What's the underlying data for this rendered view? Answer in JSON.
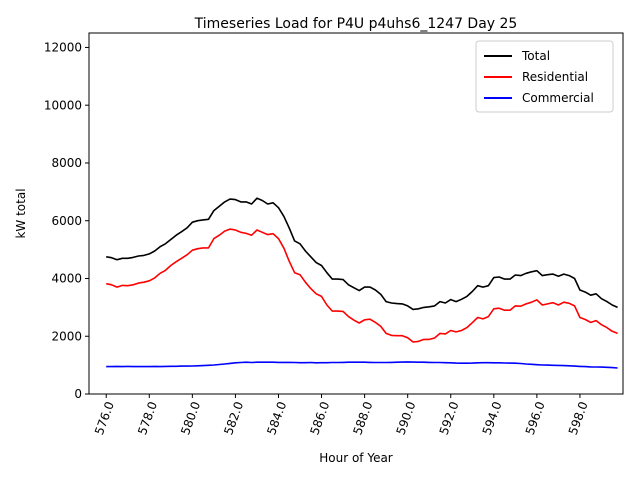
{
  "chart_data": {
    "type": "line",
    "title": "Timeseries Load for P4U p4uhs6_1247  Day 25",
    "xlabel": "Hour of Year",
    "ylabel": "kW total",
    "xlim": [
      575.2,
      600.0
    ],
    "ylim": [
      0,
      12500
    ],
    "xticks": [
      576.0,
      578.0,
      580.0,
      582.0,
      584.0,
      586.0,
      588.0,
      590.0,
      592.0,
      594.0,
      596.0,
      598.0
    ],
    "xtick_labels": [
      "576.0",
      "578.0",
      "580.0",
      "582.0",
      "584.0",
      "586.0",
      "588.0",
      "590.0",
      "592.0",
      "594.0",
      "596.0",
      "598.0"
    ],
    "yticks": [
      0,
      2000,
      4000,
      6000,
      8000,
      10000,
      12000
    ],
    "ytick_labels": [
      "0",
      "2000",
      "4000",
      "6000",
      "8000",
      "10000",
      "12000"
    ],
    "grid": false,
    "legend_position": "top-right",
    "series": [
      {
        "name": "Total",
        "color": "#000000",
        "x": [
          576.0,
          576.25,
          576.5,
          576.75,
          577.0,
          577.25,
          577.5,
          577.75,
          578.0,
          578.25,
          578.5,
          578.75,
          579.0,
          579.25,
          579.5,
          579.75,
          580.0,
          580.25,
          580.5,
          580.75,
          581.0,
          581.25,
          581.5,
          581.75,
          582.0,
          582.25,
          582.5,
          582.75,
          583.0,
          583.25,
          583.5,
          583.75,
          584.0,
          584.25,
          584.5,
          584.75,
          585.0,
          585.25,
          585.5,
          585.75,
          586.0,
          586.25,
          586.5,
          586.75,
          587.0,
          587.25,
          587.5,
          587.75,
          588.0,
          588.25,
          588.5,
          588.75,
          589.0,
          589.25,
          589.5,
          589.75,
          590.0,
          590.25,
          590.5,
          590.75,
          591.0,
          591.25,
          591.5,
          591.75,
          592.0,
          592.25,
          592.5,
          592.75,
          593.0,
          593.25,
          593.5,
          593.75,
          594.0,
          594.25,
          594.5,
          594.75,
          595.0,
          595.25,
          595.5,
          595.75,
          596.0,
          596.25,
          596.5,
          596.75,
          597.0,
          597.25,
          597.5,
          597.75,
          598.0,
          598.25,
          598.5,
          598.75,
          599.0,
          599.25,
          599.5,
          599.75
        ],
        "y": [
          4750,
          4720,
          4650,
          4700,
          4700,
          4730,
          4780,
          4800,
          4850,
          4950,
          5100,
          5200,
          5350,
          5500,
          5620,
          5750,
          5950,
          6000,
          6030,
          6050,
          6350,
          6500,
          6650,
          6750,
          6730,
          6650,
          6650,
          6580,
          6780,
          6700,
          6580,
          6620,
          6450,
          6150,
          5750,
          5300,
          5200,
          4950,
          4750,
          4550,
          4450,
          4200,
          3980,
          3980,
          3960,
          3780,
          3680,
          3580,
          3700,
          3700,
          3600,
          3450,
          3200,
          3150,
          3130,
          3120,
          3050,
          2930,
          2950,
          3000,
          3020,
          3050,
          3200,
          3150,
          3270,
          3200,
          3280,
          3380,
          3550,
          3750,
          3700,
          3750,
          4030,
          4050,
          3980,
          3980,
          4120,
          4100,
          4180,
          4230,
          4270,
          4100,
          4130,
          4150,
          4080,
          4150,
          4100,
          4000,
          3600,
          3530,
          3420,
          3470,
          3300,
          3200,
          3080,
          3000
        ]
      },
      {
        "name": "Residential",
        "color": "#ff0000",
        "x": [
          576.0,
          576.25,
          576.5,
          576.75,
          577.0,
          577.25,
          577.5,
          577.75,
          578.0,
          578.25,
          578.5,
          578.75,
          579.0,
          579.25,
          579.5,
          579.75,
          580.0,
          580.25,
          580.5,
          580.75,
          581.0,
          581.25,
          581.5,
          581.75,
          582.0,
          582.25,
          582.5,
          582.75,
          583.0,
          583.25,
          583.5,
          583.75,
          584.0,
          584.25,
          584.5,
          584.75,
          585.0,
          585.25,
          585.5,
          585.75,
          586.0,
          586.25,
          586.5,
          586.75,
          587.0,
          587.25,
          587.5,
          587.75,
          588.0,
          588.25,
          588.5,
          588.75,
          589.0,
          589.25,
          589.5,
          589.75,
          590.0,
          590.25,
          590.5,
          590.75,
          591.0,
          591.25,
          591.5,
          591.75,
          592.0,
          592.25,
          592.5,
          592.75,
          593.0,
          593.25,
          593.5,
          593.75,
          594.0,
          594.25,
          594.5,
          594.75,
          595.0,
          595.25,
          595.5,
          595.75,
          596.0,
          596.25,
          596.5,
          596.75,
          597.0,
          597.25,
          597.5,
          597.75,
          598.0,
          598.25,
          598.5,
          598.75,
          599.0,
          599.25,
          599.5,
          599.75
        ],
        "y": [
          3820,
          3780,
          3700,
          3760,
          3750,
          3780,
          3840,
          3870,
          3920,
          4020,
          4180,
          4280,
          4450,
          4580,
          4700,
          4820,
          4980,
          5030,
          5060,
          5060,
          5380,
          5500,
          5640,
          5710,
          5680,
          5600,
          5560,
          5500,
          5680,
          5600,
          5520,
          5550,
          5380,
          5050,
          4600,
          4200,
          4130,
          3870,
          3650,
          3470,
          3380,
          3080,
          2870,
          2870,
          2860,
          2680,
          2560,
          2460,
          2570,
          2590,
          2480,
          2340,
          2100,
          2030,
          2020,
          2020,
          1950,
          1800,
          1820,
          1890,
          1890,
          1940,
          2100,
          2080,
          2200,
          2150,
          2200,
          2300,
          2470,
          2650,
          2600,
          2680,
          2950,
          2970,
          2900,
          2900,
          3050,
          3040,
          3120,
          3180,
          3260,
          3080,
          3120,
          3160,
          3080,
          3180,
          3140,
          3050,
          2650,
          2580,
          2480,
          2540,
          2400,
          2300,
          2170,
          2100
        ]
      },
      {
        "name": "Commercial",
        "color": "#0000ff",
        "x": [
          576.0,
          576.25,
          576.5,
          576.75,
          577.0,
          577.25,
          577.5,
          577.75,
          578.0,
          578.25,
          578.5,
          578.75,
          579.0,
          579.25,
          579.5,
          579.75,
          580.0,
          580.25,
          580.5,
          580.75,
          581.0,
          581.25,
          581.5,
          581.75,
          582.0,
          582.25,
          582.5,
          582.75,
          583.0,
          583.25,
          583.5,
          583.75,
          584.0,
          584.25,
          584.5,
          584.75,
          585.0,
          585.25,
          585.5,
          585.75,
          586.0,
          586.25,
          586.5,
          586.75,
          587.0,
          587.25,
          587.5,
          587.75,
          588.0,
          588.25,
          588.5,
          588.75,
          589.0,
          589.25,
          589.5,
          589.75,
          590.0,
          590.25,
          590.5,
          590.75,
          591.0,
          591.25,
          591.5,
          591.75,
          592.0,
          592.25,
          592.5,
          592.75,
          593.0,
          593.25,
          593.5,
          593.75,
          594.0,
          594.25,
          594.5,
          594.75,
          595.0,
          595.25,
          595.5,
          595.75,
          596.0,
          596.25,
          596.5,
          596.75,
          597.0,
          597.25,
          597.5,
          597.75,
          598.0,
          598.25,
          598.5,
          598.75,
          599.0,
          599.25,
          599.5,
          599.75
        ],
        "y": [
          950,
          950,
          955,
          950,
          955,
          950,
          950,
          950,
          950,
          955,
          950,
          955,
          960,
          960,
          965,
          965,
          970,
          975,
          985,
          995,
          1005,
          1020,
          1040,
          1060,
          1080,
          1090,
          1100,
          1090,
          1100,
          1100,
          1100,
          1100,
          1095,
          1095,
          1095,
          1090,
          1085,
          1085,
          1090,
          1080,
          1085,
          1085,
          1090,
          1090,
          1095,
          1100,
          1100,
          1100,
          1100,
          1095,
          1090,
          1090,
          1090,
          1095,
          1100,
          1105,
          1110,
          1105,
          1100,
          1100,
          1095,
          1090,
          1090,
          1085,
          1080,
          1070,
          1065,
          1065,
          1070,
          1080,
          1085,
          1085,
          1080,
          1080,
          1075,
          1070,
          1065,
          1055,
          1040,
          1030,
          1015,
          1005,
          1000,
          995,
          990,
          985,
          975,
          965,
          955,
          950,
          940,
          935,
          930,
          925,
          915,
          900
        ]
      }
    ]
  }
}
